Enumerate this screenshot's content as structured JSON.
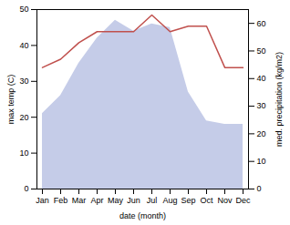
{
  "chart_data": {
    "type": "combo",
    "categories": [
      "Jan",
      "Feb",
      "Mar",
      "Apr",
      "May",
      "Jun",
      "Jul",
      "Aug",
      "Sep",
      "Oct",
      "Nov",
      "Dec"
    ],
    "series": [
      {
        "type": "area",
        "color": "#c5cce8",
        "values": [
          21,
          26,
          35,
          42,
          47,
          44,
          46,
          45,
          27,
          19,
          18,
          18
        ]
      },
      {
        "type": "line",
        "color": "#c0504d",
        "axis": "y2",
        "values": [
          44,
          47,
          53,
          57,
          57,
          57,
          63,
          57,
          59,
          59,
          44,
          44
        ]
      }
    ],
    "xlabel": "date (month)",
    "ylabel": "max temp (C)",
    "y2label": "med. precipitation (kg/m2)",
    "ylim": [
      0,
      50
    ],
    "yticks": [
      0,
      10,
      20,
      30,
      40,
      50
    ],
    "y2lim": [
      0,
      65
    ],
    "y2ticks": [
      0,
      10,
      20,
      30,
      40,
      50,
      60
    ],
    "grid": false
  }
}
